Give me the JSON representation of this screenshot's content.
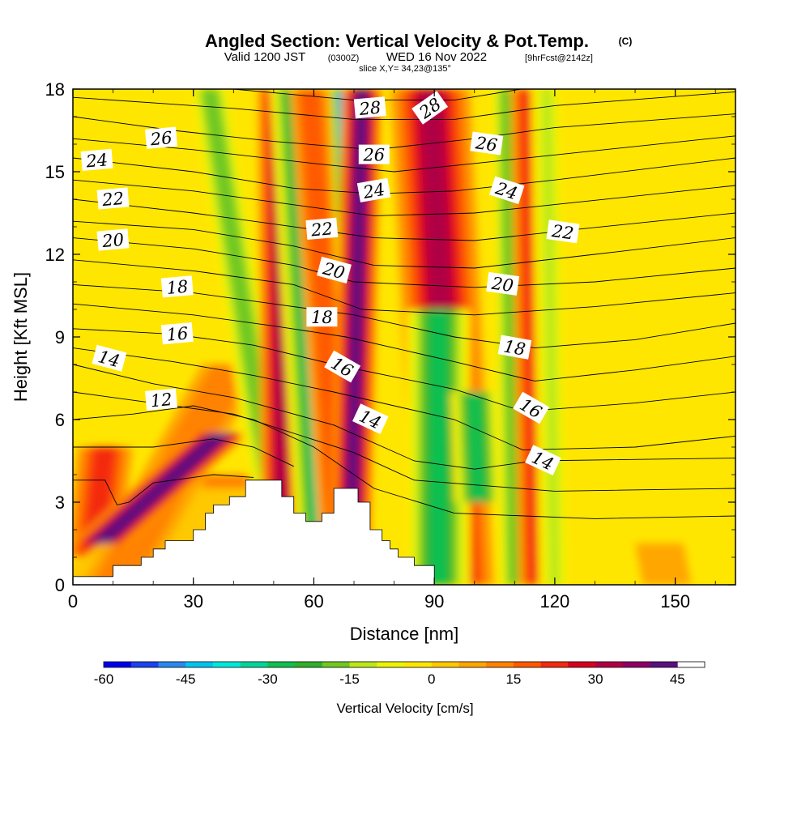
{
  "header": {
    "title": "Angled Section: Vertical Velocity & Pot.Temp.",
    "title_mark": "(C)",
    "subtitle_lead": "Valid 1200 JST",
    "subtitle_utc": "(0300Z)",
    "subtitle_date": "WED 16 Nov 2022",
    "subtitle_fcst": "[9hrFcst@2142z]",
    "slice": "slice X,Y= 34,23@135°"
  },
  "chart_data": {
    "type": "heatmap",
    "xlabel": "Distance [nm]",
    "ylabel": "Height [Kft MSL]",
    "xlim": [
      0,
      165
    ],
    "ylim": [
      0,
      18
    ],
    "xticks": [
      "0",
      "30",
      "60",
      "90",
      "120",
      "150"
    ],
    "yticks": [
      "0",
      "3",
      "6",
      "9",
      "12",
      "15",
      "18"
    ],
    "shaded_field": "Vertical Velocity [cm/s]",
    "contour_field": "Potential Temperature [C]",
    "w_bands": [
      {
        "x": 8,
        "top": 5,
        "bottom": 5,
        "w": 7,
        "wspan": 22
      },
      {
        "x": 38,
        "top": 4,
        "bottom": 38,
        "w": 7,
        "wspan": 14
      },
      {
        "x": 40,
        "top": 3.5,
        "bottom": 7,
        "w": 14,
        "wspan": 4
      },
      {
        "x": 40,
        "top": 8,
        "bottom": 10,
        "w": 8,
        "wspan": 12
      },
      {
        "x": 37,
        "top": 5.5,
        "bottom": 6.5,
        "w": 7,
        "wspan": 46
      },
      {
        "x": 34,
        "top": 18,
        "bottom": 53,
        "w": 5,
        "wspan": -20
      },
      {
        "x": 51,
        "top": 18,
        "bottom": 52,
        "w": 5,
        "wspan": 30
      },
      {
        "x": 55,
        "top": 18,
        "bottom": 62,
        "w": 6,
        "wspan": -32
      },
      {
        "x": 59,
        "top": 18,
        "bottom": 67,
        "w": 5,
        "wspan": 16
      },
      {
        "x": 67,
        "top": 18,
        "bottom": 71,
        "w": 3,
        "wspan": -50
      },
      {
        "x": 72,
        "top": 18,
        "bottom": 69,
        "w": 5,
        "wspan": 40
      },
      {
        "x": 89,
        "top": 18,
        "bottom": 95,
        "w": 10,
        "wspan": 30
      },
      {
        "x": 91,
        "top": 10,
        "bottom": 91,
        "w": 8,
        "wspan": -28
      },
      {
        "x": 100,
        "top": 7,
        "bottom": 101,
        "w": 6,
        "wspan": -30
      },
      {
        "x": 108,
        "top": 18,
        "bottom": 110,
        "w": 4,
        "wspan": -18
      },
      {
        "x": 114,
        "top": 18,
        "bottom": 116,
        "w": 5,
        "wspan": 24
      },
      {
        "x": 118,
        "top": 18,
        "bottom": 120,
        "w": 4,
        "wspan": -12
      },
      {
        "x": 146,
        "top": 1.5,
        "bottom": 148,
        "w": 6,
        "wspan": 8
      }
    ],
    "terrain": [
      [
        0,
        0.3
      ],
      [
        10,
        0.3
      ],
      [
        10,
        0.7
      ],
      [
        17,
        0.7
      ],
      [
        17,
        1.0
      ],
      [
        20,
        1.0
      ],
      [
        20,
        1.3
      ],
      [
        23,
        1.3
      ],
      [
        23,
        1.6
      ],
      [
        30,
        1.6
      ],
      [
        30,
        2.0
      ],
      [
        33,
        2.0
      ],
      [
        33,
        2.6
      ],
      [
        35,
        2.6
      ],
      [
        35,
        2.9
      ],
      [
        39,
        2.9
      ],
      [
        39,
        3.2
      ],
      [
        43,
        3.2
      ],
      [
        43,
        3.8
      ],
      [
        52,
        3.8
      ],
      [
        52,
        3.2
      ],
      [
        55,
        3.2
      ],
      [
        55,
        2.6
      ],
      [
        58,
        2.6
      ],
      [
        58,
        2.3
      ],
      [
        62,
        2.3
      ],
      [
        62,
        2.6
      ],
      [
        65,
        2.6
      ],
      [
        65,
        3.5
      ],
      [
        71,
        3.5
      ],
      [
        71,
        3.0
      ],
      [
        74,
        3.0
      ],
      [
        74,
        2.0
      ],
      [
        77,
        2.0
      ],
      [
        77,
        1.6
      ],
      [
        79,
        1.6
      ],
      [
        79,
        1.3
      ],
      [
        81,
        1.3
      ],
      [
        81,
        1.0
      ],
      [
        85,
        1.0
      ],
      [
        85,
        0.7
      ],
      [
        90,
        0.7
      ],
      [
        90,
        0.3
      ]
    ],
    "theta_lines": [
      {
        "value": 28,
        "label": "28",
        "pts": [
          [
            0,
            18.5
          ],
          [
            40,
            18.0
          ],
          [
            70,
            17.6
          ],
          [
            95,
            17.6
          ],
          [
            120,
            18.2
          ],
          [
            165,
            18.8
          ]
        ]
      },
      {
        "value": 27,
        "label": "",
        "pts": [
          [
            0,
            17.7
          ],
          [
            40,
            17.3
          ],
          [
            70,
            16.9
          ],
          [
            95,
            16.9
          ],
          [
            120,
            17.4
          ],
          [
            165,
            17.9
          ]
        ]
      },
      {
        "value": 26,
        "label": "26",
        "pts": [
          [
            0,
            17.0
          ],
          [
            25,
            16.5
          ],
          [
            50,
            16.1
          ],
          [
            75,
            15.8
          ],
          [
            100,
            16.2
          ],
          [
            120,
            16.6
          ],
          [
            165,
            17.1
          ]
        ]
      },
      {
        "value": 25,
        "label": "",
        "pts": [
          [
            0,
            16.2
          ],
          [
            30,
            15.8
          ],
          [
            60,
            15.3
          ],
          [
            80,
            15.0
          ],
          [
            100,
            15.3
          ],
          [
            165,
            16.3
          ]
        ]
      },
      {
        "value": 24,
        "label": "24",
        "pts": [
          [
            0,
            15.5
          ],
          [
            30,
            15.0
          ],
          [
            55,
            14.4
          ],
          [
            75,
            14.2
          ],
          [
            95,
            14.3
          ],
          [
            120,
            14.7
          ],
          [
            165,
            15.5
          ]
        ]
      },
      {
        "value": 23,
        "label": "",
        "pts": [
          [
            0,
            14.7
          ],
          [
            30,
            14.3
          ],
          [
            55,
            13.8
          ],
          [
            75,
            13.4
          ],
          [
            100,
            13.5
          ],
          [
            165,
            14.5
          ]
        ]
      },
      {
        "value": 22,
        "label": "22",
        "pts": [
          [
            0,
            14.0
          ],
          [
            30,
            13.5
          ],
          [
            50,
            13.1
          ],
          [
            75,
            12.6
          ],
          [
            100,
            12.5
          ],
          [
            125,
            12.9
          ],
          [
            165,
            13.5
          ]
        ]
      },
      {
        "value": 21,
        "label": "",
        "pts": [
          [
            0,
            13.2
          ],
          [
            30,
            12.9
          ],
          [
            55,
            12.3
          ],
          [
            75,
            11.6
          ],
          [
            100,
            11.5
          ],
          [
            130,
            12.0
          ],
          [
            165,
            12.6
          ]
        ]
      },
      {
        "value": 20,
        "label": "20",
        "pts": [
          [
            0,
            12.6
          ],
          [
            30,
            12.2
          ],
          [
            55,
            11.6
          ],
          [
            70,
            11.0
          ],
          [
            100,
            10.8
          ],
          [
            130,
            11.0
          ],
          [
            165,
            11.5
          ]
        ]
      },
      {
        "value": 19,
        "label": "",
        "pts": [
          [
            0,
            11.8
          ],
          [
            30,
            11.4
          ],
          [
            55,
            10.9
          ],
          [
            72,
            10.0
          ],
          [
            100,
            9.8
          ],
          [
            130,
            10.1
          ],
          [
            165,
            10.6
          ]
        ]
      },
      {
        "value": 18,
        "label": "18",
        "pts": [
          [
            0,
            10.9
          ],
          [
            30,
            10.6
          ],
          [
            50,
            10.2
          ],
          [
            70,
            9.8
          ],
          [
            95,
            9.0
          ],
          [
            115,
            8.6
          ],
          [
            140,
            8.9
          ],
          [
            165,
            9.5
          ]
        ]
      },
      {
        "value": 17,
        "label": "",
        "pts": [
          [
            0,
            10.2
          ],
          [
            30,
            9.8
          ],
          [
            50,
            9.4
          ],
          [
            68,
            9.0
          ],
          [
            95,
            8.1
          ],
          [
            115,
            7.4
          ],
          [
            140,
            7.8
          ],
          [
            165,
            8.3
          ]
        ]
      },
      {
        "value": 16,
        "label": "16",
        "pts": [
          [
            0,
            9.3
          ],
          [
            25,
            9.1
          ],
          [
            45,
            8.7
          ],
          [
            65,
            8.0
          ],
          [
            95,
            7.1
          ],
          [
            112,
            6.3
          ],
          [
            140,
            6.6
          ],
          [
            165,
            7.0
          ]
        ]
      },
      {
        "value": 15,
        "label": "",
        "pts": [
          [
            0,
            8.6
          ],
          [
            25,
            8.1
          ],
          [
            45,
            7.6
          ],
          [
            65,
            7.0
          ],
          [
            95,
            6.0
          ],
          [
            112,
            4.9
          ],
          [
            140,
            5.0
          ],
          [
            165,
            5.4
          ]
        ]
      },
      {
        "value": 14,
        "label": "14",
        "pts": [
          [
            0,
            8.0
          ],
          [
            20,
            7.3
          ],
          [
            40,
            6.8
          ],
          [
            65,
            5.8
          ],
          [
            85,
            4.5
          ],
          [
            100,
            4.2
          ],
          [
            115,
            4.5
          ],
          [
            165,
            4.6
          ]
        ]
      },
      {
        "value": 13,
        "label": "",
        "pts": [
          [
            0,
            7.0
          ],
          [
            20,
            6.6
          ],
          [
            40,
            6.2
          ],
          [
            55,
            5.5
          ],
          [
            70,
            4.8
          ],
          [
            85,
            3.8
          ],
          [
            120,
            3.4
          ],
          [
            165,
            3.5
          ]
        ]
      },
      {
        "value": 12,
        "label": "12",
        "pts": [
          [
            0,
            6.0
          ],
          [
            15,
            6.2
          ],
          [
            30,
            6.5
          ],
          [
            45,
            6.0
          ],
          [
            60,
            5.0
          ],
          [
            75,
            3.5
          ],
          [
            95,
            2.6
          ],
          [
            130,
            2.4
          ],
          [
            165,
            2.5
          ]
        ]
      },
      {
        "value": 11,
        "label": "",
        "pts": [
          [
            0,
            5.0
          ],
          [
            20,
            5.0
          ],
          [
            35,
            5.3
          ],
          [
            45,
            5.0
          ],
          [
            55,
            4.3
          ]
        ]
      },
      {
        "value": 10,
        "label": "",
        "pts": [
          [
            0,
            3.8
          ],
          [
            8,
            3.8
          ],
          [
            11,
            2.9
          ],
          [
            14,
            3.0
          ],
          [
            20,
            3.7
          ],
          [
            35,
            4.0
          ],
          [
            45,
            3.9
          ]
        ]
      }
    ],
    "theta_labels": [
      {
        "text": "28",
        "x": 74,
        "y": 17.3,
        "angle": -5
      },
      {
        "text": "28",
        "x": 89,
        "y": 17.3,
        "angle": -35
      },
      {
        "text": "26",
        "x": 22,
        "y": 16.2,
        "angle": -5
      },
      {
        "text": "26",
        "x": 75,
        "y": 15.6,
        "angle": 0
      },
      {
        "text": "26",
        "x": 103,
        "y": 16.0,
        "angle": 8
      },
      {
        "text": "24",
        "x": 6,
        "y": 15.4,
        "angle": -5
      },
      {
        "text": "24",
        "x": 75,
        "y": 14.3,
        "angle": -10
      },
      {
        "text": "24",
        "x": 108,
        "y": 14.3,
        "angle": 18
      },
      {
        "text": "22",
        "x": 10,
        "y": 14.0,
        "angle": -5
      },
      {
        "text": "22",
        "x": 62,
        "y": 12.9,
        "angle": -5
      },
      {
        "text": "22",
        "x": 122,
        "y": 12.8,
        "angle": 8
      },
      {
        "text": "20",
        "x": 10,
        "y": 12.5,
        "angle": -5
      },
      {
        "text": "20",
        "x": 65,
        "y": 11.4,
        "angle": 15
      },
      {
        "text": "20",
        "x": 107,
        "y": 10.9,
        "angle": 8
      },
      {
        "text": "18",
        "x": 26,
        "y": 10.8,
        "angle": -5
      },
      {
        "text": "18",
        "x": 62,
        "y": 9.7,
        "angle": 0
      },
      {
        "text": "18",
        "x": 110,
        "y": 8.6,
        "angle": 10
      },
      {
        "text": "16",
        "x": 26,
        "y": 9.1,
        "angle": -5
      },
      {
        "text": "16",
        "x": 67,
        "y": 7.9,
        "angle": 30
      },
      {
        "text": "16",
        "x": 114,
        "y": 6.4,
        "angle": 30
      },
      {
        "text": "14",
        "x": 9,
        "y": 8.2,
        "angle": 15
      },
      {
        "text": "14",
        "x": 74,
        "y": 6.0,
        "angle": 25
      },
      {
        "text": "14",
        "x": 117,
        "y": 4.5,
        "angle": 25
      },
      {
        "text": "12",
        "x": 22,
        "y": 6.7,
        "angle": -5
      }
    ],
    "colorbar": {
      "label": "Vertical Velocity [cm/s]",
      "min": -60,
      "max": 50,
      "step": 5,
      "ticks": [
        "-60",
        "-45",
        "-30",
        "-15",
        "0",
        "15",
        "30",
        "45"
      ],
      "colors": [
        "#0000ee",
        "#1a44f0",
        "#2a88f0",
        "#00c4f0",
        "#00e8dc",
        "#00d69a",
        "#10c050",
        "#30b028",
        "#70c820",
        "#bce81a",
        "#ecf400",
        "#ffe600",
        "#ffc800",
        "#ffa600",
        "#ff8200",
        "#ff5a00",
        "#f42a10",
        "#d80020",
        "#b00044",
        "#900068",
        "#5a1080"
      ]
    }
  }
}
